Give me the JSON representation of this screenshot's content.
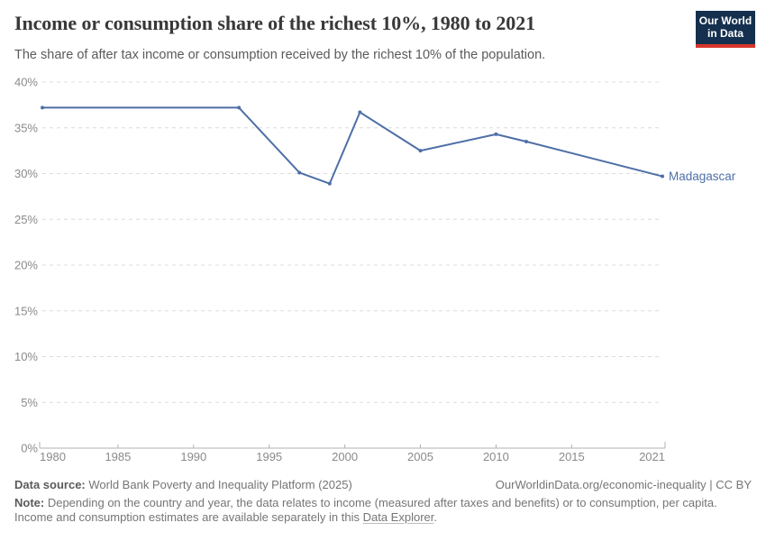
{
  "header": {
    "title": "Income or consumption share of the richest 10%, 1980 to 2021",
    "subtitle": "The share of after tax income or consumption received by the richest 10% of the population.",
    "logo": {
      "line1": "Our World",
      "line2": "in Data"
    }
  },
  "chart_data": {
    "type": "line",
    "title": "Income or consumption share of the richest 10%, 1980 to 2021",
    "xlabel": "",
    "ylabel": "",
    "xlim": [
      1980,
      2021
    ],
    "ylim": [
      0,
      40
    ],
    "x_ticks": [
      1980,
      1985,
      1990,
      1995,
      2000,
      2005,
      2010,
      2015,
      2021
    ],
    "y_ticks": [
      0,
      5,
      10,
      15,
      20,
      25,
      30,
      35,
      40
    ],
    "y_tick_suffix": "%",
    "grid": "horizontal-dashed",
    "legend_position": "end-of-line-label",
    "series": [
      {
        "name": "Madagascar",
        "color": "#4e6fa7",
        "points": [
          {
            "x": 1980,
            "y": 37.2
          },
          {
            "x": 1993,
            "y": 37.2
          },
          {
            "x": 1997,
            "y": 30.1
          },
          {
            "x": 1999,
            "y": 28.9
          },
          {
            "x": 2001,
            "y": 36.7
          },
          {
            "x": 2005,
            "y": 32.5
          },
          {
            "x": 2010,
            "y": 34.3
          },
          {
            "x": 2012,
            "y": 33.5
          },
          {
            "x": 2021,
            "y": 29.7
          }
        ]
      }
    ]
  },
  "footer": {
    "datasource_label": "Data source:",
    "datasource_text": " World Bank Poverty and Inequality Platform (2025)",
    "credit": "OurWorldinData.org/economic-inequality | CC BY",
    "note_label": "Note:",
    "note_body": " Depending on the country and year, the data relates to income (measured after taxes and benefits) or to consumption, per capita. Income and consumption estimates are available separately in this ",
    "note_link": "Data Explorer",
    "note_suffix": "."
  },
  "colors": {
    "line": "#4e6fa7",
    "grid": "#dcdcdc",
    "axis_line": "#b0b0b0",
    "axis_text": "#8a8a8a",
    "title_text": "#383838",
    "subtitle_text": "#5a5a5a",
    "footer_text": "#757575",
    "logo_bg": "#15304e",
    "logo_red": "#d7352c"
  }
}
